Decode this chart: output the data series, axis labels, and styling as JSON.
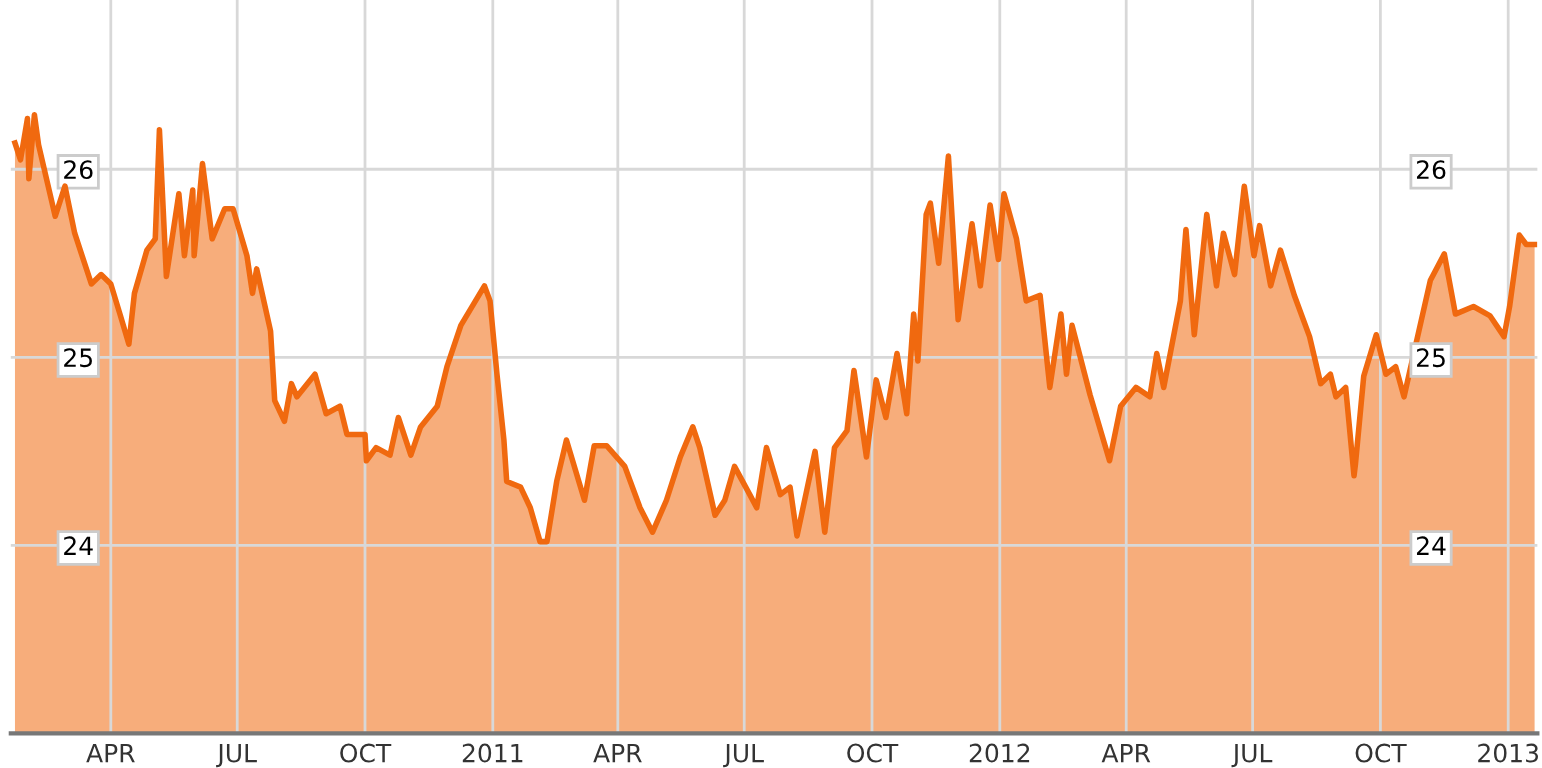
{
  "chart_data": {
    "type": "area",
    "x": [
      "2010-01-22",
      "2010-01-26",
      "2010-01-31",
      "2010-02-01",
      "2010-02-05",
      "2010-02-08",
      "2010-02-20",
      "2010-02-27",
      "2010-03-06",
      "2010-03-18",
      "2010-03-25",
      "2010-04-01",
      "2010-04-08",
      "2010-04-14",
      "2010-04-18",
      "2010-04-27",
      "2010-05-03",
      "2010-05-06",
      "2010-05-11",
      "2010-05-20",
      "2010-05-24",
      "2010-05-30",
      "2010-05-31",
      "2010-06-06",
      "2010-06-13",
      "2010-06-22",
      "2010-06-28",
      "2010-07-08",
      "2010-07-12",
      "2010-07-15",
      "2010-07-25",
      "2010-07-28",
      "2010-08-04",
      "2010-08-09",
      "2010-08-13",
      "2010-08-26",
      "2010-09-03",
      "2010-09-13",
      "2010-09-18",
      "2010-10-01",
      "2010-10-02",
      "2010-10-09",
      "2010-10-19",
      "2010-10-25",
      "2010-11-03",
      "2010-11-10",
      "2010-11-22",
      "2010-11-29",
      "2010-12-09",
      "2010-12-26",
      "2010-12-30",
      "2011-01-04",
      "2011-01-09",
      "2011-01-11",
      "2011-01-21",
      "2011-01-28",
      "2011-02-04",
      "2011-02-09",
      "2011-02-16",
      "2011-02-23",
      "2011-03-08",
      "2011-03-15",
      "2011-03-24",
      "2011-04-06",
      "2011-04-17",
      "2011-04-26",
      "2011-05-06",
      "2011-05-16",
      "2011-05-25",
      "2011-05-30",
      "2011-06-10",
      "2011-06-17",
      "2011-06-24",
      "2011-07-05",
      "2011-07-10",
      "2011-07-17",
      "2011-07-27",
      "2011-08-03",
      "2011-08-08",
      "2011-08-21",
      "2011-08-28",
      "2011-09-04",
      "2011-09-13",
      "2011-09-18",
      "2011-09-27",
      "2011-10-04",
      "2011-10-11",
      "2011-10-19",
      "2011-10-26",
      "2011-10-31",
      "2011-11-03",
      "2011-11-09",
      "2011-11-12",
      "2011-11-18",
      "2011-11-25",
      "2011-12-02",
      "2011-12-12",
      "2011-12-18",
      "2011-12-25",
      "2011-12-31",
      "2012-01-04",
      "2012-01-13",
      "2012-01-20",
      "2012-01-30",
      "2012-02-06",
      "2012-02-14",
      "2012-02-18",
      "2012-02-22",
      "2012-03-06",
      "2012-03-20",
      "2012-03-28",
      "2012-04-08",
      "2012-04-18",
      "2012-04-23",
      "2012-04-28",
      "2012-05-10",
      "2012-05-14",
      "2012-05-20",
      "2012-05-29",
      "2012-06-05",
      "2012-06-10",
      "2012-06-18",
      "2012-06-25",
      "2012-07-02",
      "2012-07-06",
      "2012-07-14",
      "2012-07-21",
      "2012-07-31",
      "2012-08-11",
      "2012-08-19",
      "2012-08-26",
      "2012-08-30",
      "2012-09-06",
      "2012-09-12",
      "2012-09-13",
      "2012-09-19",
      "2012-09-28",
      "2012-10-05",
      "2012-10-12",
      "2012-10-18",
      "2012-10-25",
      "2012-11-06",
      "2012-11-16",
      "2012-11-24",
      "2012-12-07",
      "2012-12-19",
      "2012-12-29",
      "2013-01-02",
      "2013-01-09",
      "2013-01-14",
      "2013-01-20"
    ],
    "series": [
      {
        "color": "#f0690f",
        "values": [
          26.14,
          26.05,
          26.27,
          25.95,
          26.29,
          26.13,
          25.75,
          25.91,
          25.66,
          25.39,
          25.44,
          25.39,
          25.22,
          25.07,
          25.34,
          25.57,
          25.63,
          26.21,
          25.43,
          25.87,
          25.54,
          25.89,
          25.54,
          26.03,
          25.63,
          25.79,
          25.79,
          25.54,
          25.34,
          25.47,
          25.14,
          24.77,
          24.66,
          24.86,
          24.79,
          24.91,
          24.7,
          24.74,
          24.59,
          24.59,
          24.45,
          24.52,
          24.48,
          24.68,
          24.48,
          24.63,
          24.74,
          24.95,
          25.17,
          25.38,
          25.3,
          24.91,
          24.56,
          24.34,
          24.31,
          24.2,
          24.02,
          24.02,
          24.34,
          24.56,
          24.24,
          24.53,
          24.53,
          24.42,
          24.2,
          24.07,
          24.24,
          24.47,
          24.63,
          24.52,
          24.16,
          24.24,
          24.42,
          24.27,
          24.2,
          24.52,
          24.27,
          24.31,
          24.05,
          24.5,
          24.07,
          24.52,
          24.61,
          24.93,
          24.47,
          24.88,
          24.68,
          25.02,
          24.7,
          25.23,
          24.98,
          25.76,
          25.82,
          25.5,
          26.07,
          25.2,
          25.71,
          25.38,
          25.81,
          25.52,
          25.87,
          25.63,
          25.3,
          25.33,
          24.84,
          25.23,
          24.91,
          25.17,
          24.8,
          24.45,
          24.74,
          24.84,
          24.79,
          25.02,
          24.84,
          25.3,
          25.68,
          25.12,
          25.76,
          25.38,
          25.66,
          25.44,
          25.91,
          25.54,
          25.7,
          25.38,
          25.57,
          25.33,
          25.11,
          24.86,
          24.91,
          24.79,
          24.84,
          24.37,
          24.43,
          24.9,
          25.12,
          24.91,
          24.95,
          24.79,
          25.02,
          25.41,
          25.55,
          25.23,
          25.27,
          25.22,
          25.11,
          25.27,
          25.65,
          25.6,
          25.6
        ]
      }
    ],
    "xlim": [
      "2010-01-19",
      "2013-01-22"
    ],
    "xticks": [
      {
        "value": "2010-04-01",
        "label": "APR"
      },
      {
        "value": "2010-07-01",
        "label": "JUL"
      },
      {
        "value": "2010-10-01",
        "label": "OCT"
      },
      {
        "value": "2011-01-01",
        "label": "2011"
      },
      {
        "value": "2011-04-01",
        "label": "APR"
      },
      {
        "value": "2011-07-01",
        "label": "JUL"
      },
      {
        "value": "2011-10-01",
        "label": "OCT"
      },
      {
        "value": "2012-01-01",
        "label": "2012"
      },
      {
        "value": "2012-04-01",
        "label": "APR"
      },
      {
        "value": "2012-07-01",
        "label": "JUL"
      },
      {
        "value": "2012-10-01",
        "label": "OCT"
      },
      {
        "value": "2013-01-01",
        "label": "2013"
      }
    ],
    "ylim": [
      23,
      26.9
    ],
    "yticks": [
      24,
      25,
      26
    ],
    "y2lim": [
      23,
      26.9
    ],
    "y2ticks": [
      24,
      25,
      26
    ],
    "grid": true,
    "legend": false,
    "marker": "none",
    "line_style": "solid"
  }
}
